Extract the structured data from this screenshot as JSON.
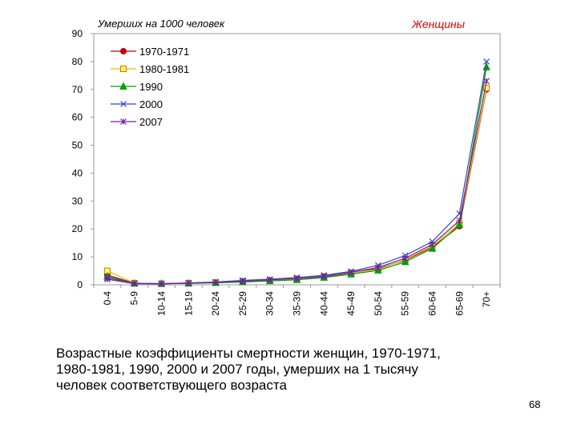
{
  "chart_data": {
    "type": "line",
    "ylabel": "Умерших на 1000 человек",
    "subset_label": "Женщины",
    "categories": [
      "0-4",
      "5-9",
      "10-14",
      "15-19",
      "20-24",
      "25-29",
      "30-34",
      "35-39",
      "40-44",
      "45-49",
      "50-54",
      "55-59",
      "60-64",
      "65-69",
      "70+"
    ],
    "ylim": [
      0,
      90
    ],
    "yticks": [
      0,
      10,
      20,
      30,
      40,
      50,
      60,
      70,
      80,
      90
    ],
    "grid": false,
    "legend_position": "top-left",
    "series": [
      {
        "name": "1970-1971",
        "color": "#c00000",
        "marker": "circle",
        "values": [
          3.5,
          0.6,
          0.4,
          0.6,
          0.8,
          1.1,
          1.5,
          2.0,
          2.8,
          4.2,
          5.8,
          8.8,
          13.5,
          21.0,
          70.0
        ]
      },
      {
        "name": "1980-1981",
        "color": "#e6c000",
        "marker": "square",
        "values": [
          5.0,
          0.6,
          0.4,
          0.6,
          0.8,
          1.2,
          1.6,
          2.1,
          3.0,
          4.3,
          5.5,
          9.0,
          14.0,
          22.0,
          70.5
        ]
      },
      {
        "name": "1990",
        "color": "#00a000",
        "marker": "triangle",
        "values": [
          3.0,
          0.5,
          0.4,
          0.5,
          0.7,
          1.0,
          1.4,
          1.8,
          2.6,
          3.8,
          5.2,
          8.2,
          13.0,
          21.5,
          78.0
        ]
      },
      {
        "name": "2000",
        "color": "#3344cc",
        "marker": "x",
        "values": [
          2.5,
          0.5,
          0.4,
          0.7,
          1.0,
          1.6,
          2.0,
          2.6,
          3.4,
          4.8,
          7.0,
          10.5,
          15.5,
          25.5,
          80.0
        ]
      },
      {
        "name": "2007",
        "color": "#7a1fa0",
        "marker": "star",
        "values": [
          2.0,
          0.4,
          0.3,
          0.6,
          0.9,
          1.3,
          1.8,
          2.3,
          3.0,
          4.5,
          6.2,
          9.5,
          14.5,
          23.0,
          73.0
        ]
      }
    ]
  },
  "caption": {
    "line1": "Возрастные коэффициенты смертности женщин, 1970-1971,",
    "line2": "1980-1981, 1990, 2000 и 2007 годы, умерших на 1 тысячу",
    "line3": "человек соответствующего возраста"
  },
  "page_number": "68"
}
